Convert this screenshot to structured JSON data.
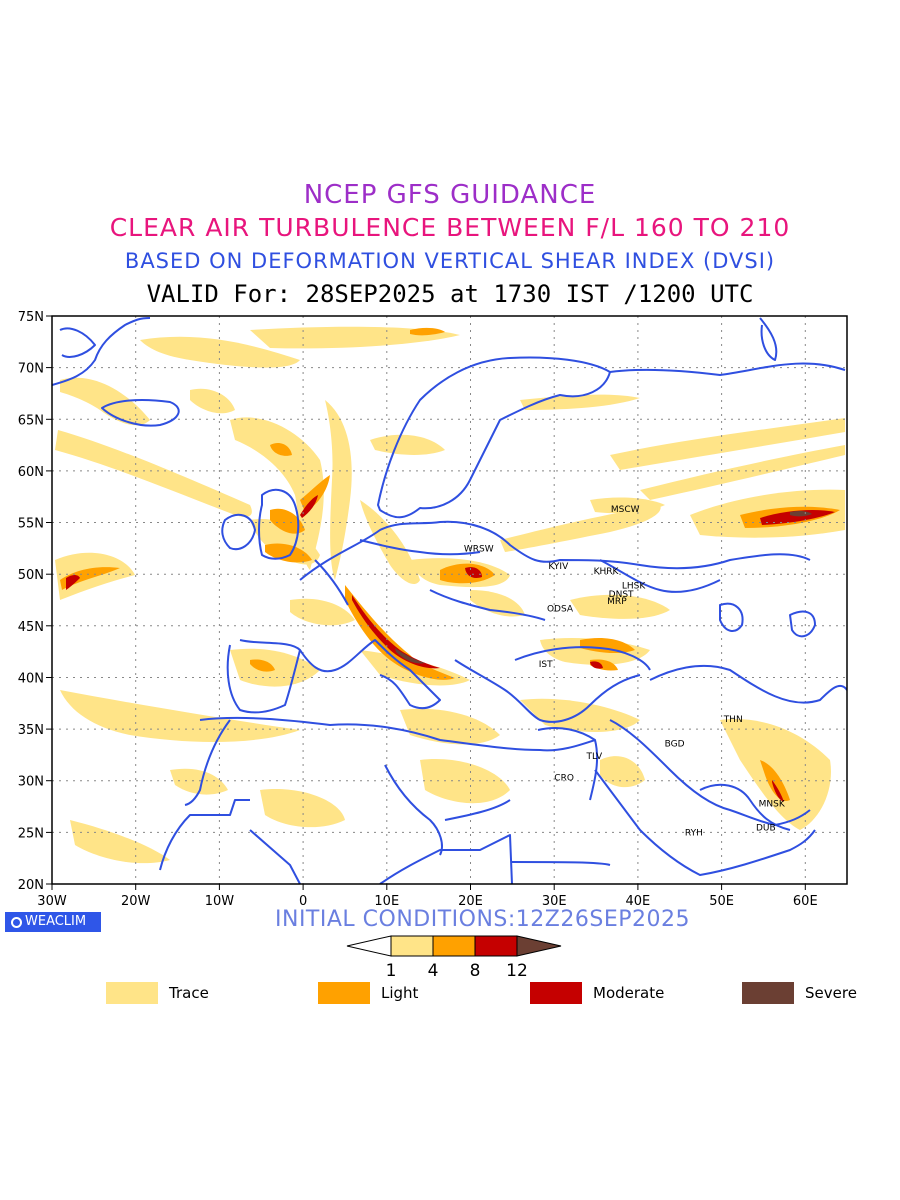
{
  "header": {
    "title": "NCEP GFS GUIDANCE",
    "subtitle": "CLEAR AIR TURBULENCE BETWEEN F/L 160 TO 210",
    "index": "BASED ON DEFORMATION VERTICAL SHEAR INDEX (DVSI)",
    "valid": "VALID For: 28SEP2025 at 1730 IST /1200 UTC"
  },
  "axes": {
    "lat_labels": [
      "75N",
      "70N",
      "65N",
      "60N",
      "55N",
      "50N",
      "45N",
      "40N",
      "35N",
      "30N",
      "25N",
      "20N"
    ],
    "lon_labels": [
      "30W",
      "20W",
      "10W",
      "0",
      "10E",
      "20E",
      "30E",
      "40E",
      "50E",
      "60E"
    ]
  },
  "cities": [
    {
      "name": "MSCW",
      "lon": 38.5,
      "lat": 56.0
    },
    {
      "name": "WRSW",
      "lon": 21.0,
      "lat": 52.2
    },
    {
      "name": "KYIV",
      "lon": 30.5,
      "lat": 50.5
    },
    {
      "name": "KHRK",
      "lon": 36.2,
      "lat": 50.0
    },
    {
      "name": "LHSK",
      "lon": 39.5,
      "lat": 48.6
    },
    {
      "name": "DNST",
      "lon": 38.0,
      "lat": 47.8
    },
    {
      "name": "MRP",
      "lon": 37.5,
      "lat": 47.1
    },
    {
      "name": "ODSA",
      "lon": 30.7,
      "lat": 46.4
    },
    {
      "name": "IST",
      "lon": 29.0,
      "lat": 41.0
    },
    {
      "name": "THN",
      "lon": 51.4,
      "lat": 35.7
    },
    {
      "name": "BGD",
      "lon": 44.4,
      "lat": 33.3
    },
    {
      "name": "TLV",
      "lon": 34.8,
      "lat": 32.1
    },
    {
      "name": "CRO",
      "lon": 31.2,
      "lat": 30.0
    },
    {
      "name": "MNSK",
      "lon": 56.0,
      "lat": 27.5
    },
    {
      "name": "DUB",
      "lon": 55.3,
      "lat": 25.2
    },
    {
      "name": "RYH",
      "lon": 46.7,
      "lat": 24.7
    }
  ],
  "footer": {
    "logo": "WEACLIM",
    "initial_conditions": "INITIAL CONDITIONS:12Z26SEP2025"
  },
  "colorbar": {
    "ticks": [
      "1",
      "4",
      "8",
      "12"
    ],
    "colors": [
      "#ffe488",
      "#ffa100",
      "#c50000",
      "#6b3f33"
    ]
  },
  "legend": [
    {
      "label": "Trace",
      "color": "#ffe488"
    },
    {
      "label": "Light",
      "color": "#ffa100"
    },
    {
      "label": "Moderate",
      "color": "#c50000"
    },
    {
      "label": "Severe",
      "color": "#6b3f33"
    }
  ],
  "colors": {
    "coastline": "#2f4fe0",
    "frame": "#000000"
  }
}
